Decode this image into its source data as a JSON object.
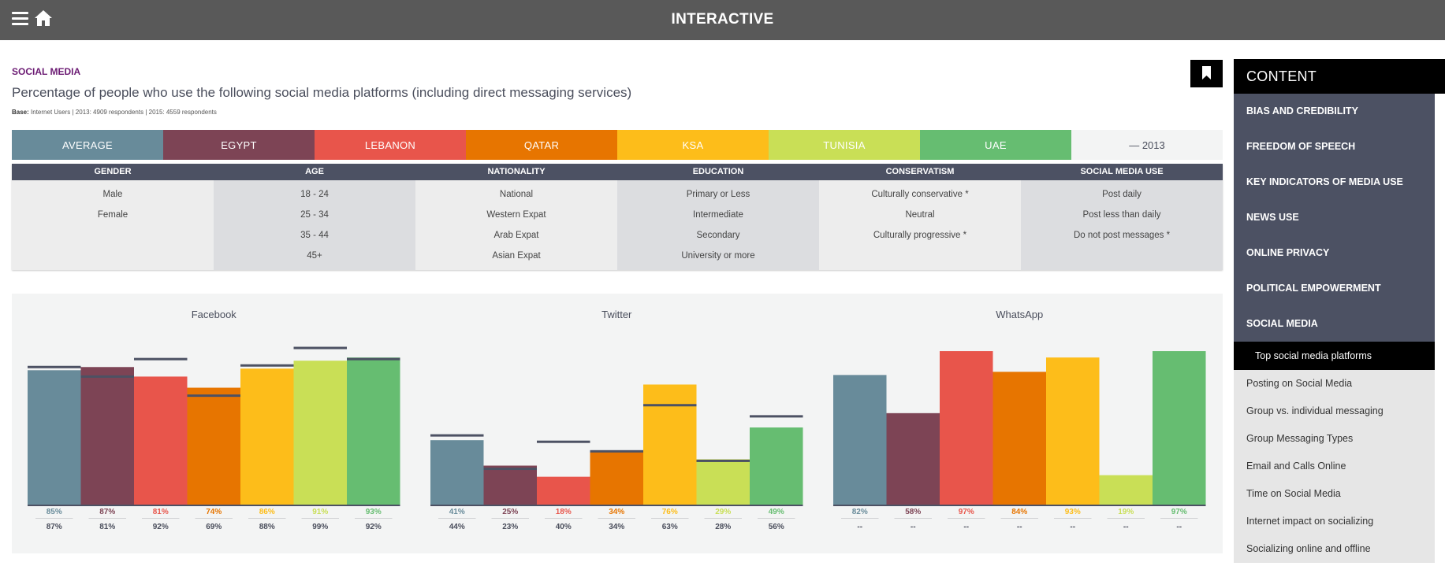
{
  "header": {
    "title": "INTERACTIVE"
  },
  "page": {
    "section": "SOCIAL MEDIA",
    "headline": "Percentage of people who use the following social media platforms (including direct messaging services)",
    "base_label": "Base:",
    "base_text": "Internet Users | 2013: 4909 respondents | 2015: 4559 respondents"
  },
  "countries": [
    {
      "label": "AVERAGE",
      "color": "#688b9a"
    },
    {
      "label": "EGYPT",
      "color": "#7d4455"
    },
    {
      "label": "LEBANON",
      "color": "#e8554b"
    },
    {
      "label": "QATAR",
      "color": "#e77500"
    },
    {
      "label": "KSA",
      "color": "#fdbd1a"
    },
    {
      "label": "TUNISIA",
      "color": "#c9df56"
    },
    {
      "label": "UAE",
      "color": "#66bd71"
    }
  ],
  "legend_2013": "— 2013",
  "filters": [
    {
      "head": "GENDER",
      "items": [
        "Male",
        "Female"
      ]
    },
    {
      "head": "AGE",
      "items": [
        "18 - 24",
        "25 - 34",
        "35 - 44",
        "45+"
      ]
    },
    {
      "head": "NATIONALITY",
      "items": [
        "National",
        "Western Expat",
        "Arab Expat",
        "Asian Expat"
      ]
    },
    {
      "head": "EDUCATION",
      "items": [
        "Primary or Less",
        "Intermediate",
        "Secondary",
        "University or more"
      ]
    },
    {
      "head": "CONSERVATISM",
      "items": [
        "Culturally conservative *",
        "Neutral",
        "Culturally progressive *"
      ]
    },
    {
      "head": "SOCIAL MEDIA USE",
      "items": [
        "Post daily",
        "Post less than daily",
        "Do not post messages *"
      ]
    }
  ],
  "chart_data": [
    {
      "type": "bar",
      "title": "Facebook",
      "categories": [
        "AVERAGE",
        "EGYPT",
        "LEBANON",
        "QATAR",
        "KSA",
        "TUNISIA",
        "UAE"
      ],
      "series": [
        {
          "name": "2015",
          "values": [
            85,
            87,
            81,
            74,
            86,
            91,
            93
          ]
        },
        {
          "name": "2013",
          "values": [
            87,
            81,
            92,
            69,
            88,
            99,
            92
          ]
        }
      ],
      "value_labels": [
        "85%",
        "87%",
        "81%",
        "74%",
        "86%",
        "91%",
        "93%"
      ],
      "labels_2013": [
        "87%",
        "81%",
        "92%",
        "69%",
        "88%",
        "99%",
        "92%"
      ],
      "ylim": [
        0,
        100
      ]
    },
    {
      "type": "bar",
      "title": "Twitter",
      "categories": [
        "AVERAGE",
        "EGYPT",
        "LEBANON",
        "QATAR",
        "KSA",
        "TUNISIA",
        "UAE"
      ],
      "series": [
        {
          "name": "2015",
          "values": [
            41,
            25,
            18,
            34,
            76,
            29,
            49
          ]
        },
        {
          "name": "2013",
          "values": [
            44,
            23,
            40,
            34,
            63,
            28,
            56
          ]
        }
      ],
      "value_labels": [
        "41%",
        "25%",
        "18%",
        "34%",
        "76%",
        "29%",
        "49%"
      ],
      "labels_2013": [
        "44%",
        "23%",
        "40%",
        "34%",
        "63%",
        "28%",
        "56%"
      ],
      "ylim": [
        0,
        100
      ]
    },
    {
      "type": "bar",
      "title": "WhatsApp",
      "categories": [
        "AVERAGE",
        "EGYPT",
        "LEBANON",
        "QATAR",
        "KSA",
        "TUNISIA",
        "UAE"
      ],
      "series": [
        {
          "name": "2015",
          "values": [
            82,
            58,
            97,
            84,
            93,
            19,
            97
          ]
        },
        {
          "name": "2013",
          "values": [
            null,
            null,
            null,
            null,
            null,
            null,
            null
          ]
        }
      ],
      "value_labels": [
        "82%",
        "58%",
        "97%",
        "84%",
        "93%",
        "19%",
        "97%"
      ],
      "labels_2013": [
        "--",
        "--",
        "--",
        "--",
        "--",
        "--",
        "--"
      ],
      "ylim": [
        0,
        100
      ]
    }
  ],
  "sidebar": {
    "title": "CONTENT",
    "categories": [
      "BIAS AND CREDIBILITY",
      "FREEDOM OF SPEECH",
      "KEY INDICATORS OF MEDIA USE",
      "NEWS USE",
      "ONLINE PRIVACY",
      "POLITICAL EMPOWERMENT",
      "SOCIAL MEDIA"
    ],
    "active": "Top social media platforms",
    "items": [
      "Posting on Social Media",
      "Group vs. individual messaging",
      "Group Messaging Types",
      "Email and Calls Online",
      "Time on Social Media",
      "Internet impact on socializing",
      "Socializing online and offline"
    ]
  }
}
